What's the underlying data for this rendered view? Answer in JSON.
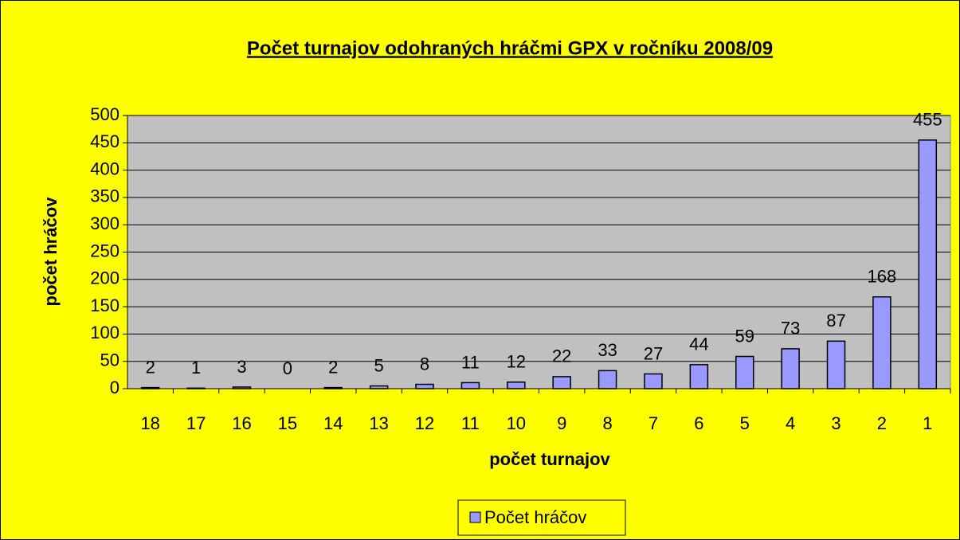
{
  "chart_data": {
    "type": "bar",
    "title": "Počet turnajov odohraných hráčmi GPX v ročníku 2008/09",
    "x_label": "počet turnajov",
    "y_label": "počet hráčov",
    "categories": [
      "18",
      "17",
      "16",
      "15",
      "14",
      "13",
      "12",
      "11",
      "10",
      "9",
      "8",
      "7",
      "6",
      "5",
      "4",
      "3",
      "2",
      "1"
    ],
    "series": [
      {
        "name": "Počet hráčov",
        "color": "#9999ff",
        "values": [
          2,
          1,
          3,
          0,
          2,
          5,
          8,
          11,
          12,
          22,
          33,
          27,
          44,
          59,
          73,
          87,
          168,
          455
        ]
      }
    ],
    "ylim": [
      0,
      500
    ],
    "yticks": [
      0,
      50,
      100,
      150,
      200,
      250,
      300,
      350,
      400,
      450,
      500
    ],
    "grid": true,
    "legend": "bottom"
  }
}
